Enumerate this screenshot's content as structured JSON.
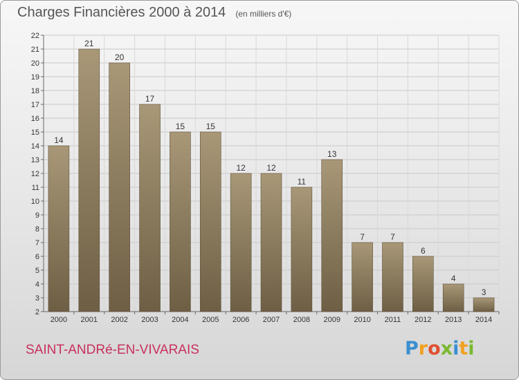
{
  "header": {
    "title": "Charges Financières 2000 à 2014",
    "unit": "(en milliers d'€)"
  },
  "footer": {
    "town": "SAINT-ANDRé-EN-VIVARAIS",
    "logo_letters": [
      "P",
      "r",
      "o",
      "x",
      "i",
      "t",
      "i"
    ],
    "logo_colors": [
      "#3a8fd0",
      "#f2a020",
      "#e05030",
      "#7ab830",
      "#3a8fd0",
      "#f2a020",
      "#7ab830"
    ]
  },
  "colors": {
    "bar_light": "#a89878",
    "bar_dark": "#6e5e44",
    "grid": "#c8c8c8",
    "axis_text": "#333333"
  },
  "chart_data": {
    "type": "bar",
    "categories": [
      "2000",
      "2001",
      "2002",
      "2003",
      "2004",
      "2005",
      "2006",
      "2007",
      "2008",
      "2009",
      "2010",
      "2011",
      "2012",
      "2013",
      "2014"
    ],
    "values": [
      14,
      21,
      20,
      17,
      15,
      15,
      12,
      12,
      11,
      13,
      7,
      7,
      6,
      4,
      3
    ],
    "ylim": [
      2,
      22
    ],
    "yticks": [
      2,
      3,
      4,
      5,
      6,
      7,
      8,
      9,
      10,
      11,
      12,
      13,
      14,
      15,
      16,
      17,
      18,
      19,
      20,
      21,
      22
    ],
    "grid": true,
    "title": "Charges Financières 2000 à 2014",
    "subtitle": "(en milliers d'€)"
  }
}
